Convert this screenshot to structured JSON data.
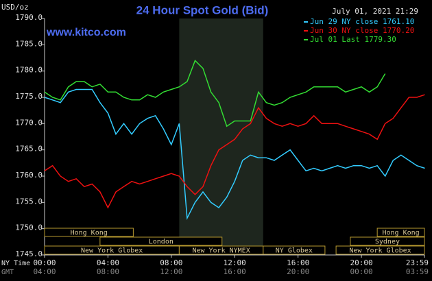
{
  "chart_data": {
    "type": "line",
    "title": "24 Hour Spot Gold (Bid)",
    "subtitle": "www.kitco.com",
    "timestamp": "July 01, 2021 21:29",
    "y_label": "USD/oz",
    "x_label": "NY Time",
    "x2_label": "GMT",
    "x": [
      0,
      0.5,
      1,
      1.5,
      2,
      2.5,
      3,
      3.5,
      4,
      4.5,
      5,
      5.5,
      6,
      6.5,
      7,
      7.5,
      8,
      8.5,
      9,
      9.5,
      10,
      10.5,
      11,
      11.5,
      12,
      12.5,
      13,
      13.5,
      14,
      14.5,
      15,
      15.5,
      16,
      16.5,
      17,
      17.5,
      18,
      18.5,
      19,
      19.5,
      20,
      20.5,
      21,
      21.5,
      22,
      22.5,
      23,
      23.5,
      24
    ],
    "series": [
      {
        "name": "Jun 29 NY close 1761.10",
        "color": "#33ccff",
        "values": [
          1775,
          1774.5,
          1774,
          1776,
          1776.5,
          1776.5,
          1776.5,
          1774,
          1772,
          1768,
          1770,
          1768,
          1770,
          1771,
          1771.5,
          1769,
          1766,
          1770,
          1752,
          1755,
          1757,
          1755,
          1754,
          1756,
          1759,
          1763,
          1764,
          1763.5,
          1763.5,
          1763,
          1764,
          1765,
          1763,
          1761,
          1761.5,
          1761,
          1761.5,
          1762,
          1761.5,
          1762,
          1762,
          1761.5,
          1762,
          1760,
          1763,
          1764,
          1763,
          1762,
          1761.5
        ]
      },
      {
        "name": "Jun 30 NY close 1770.20",
        "color": "#ee1111",
        "values": [
          1761,
          1762,
          1760,
          1759,
          1759.5,
          1758,
          1758.5,
          1757,
          1754,
          1757,
          1758,
          1759,
          1758.5,
          1759,
          1759.5,
          1760,
          1760.5,
          1760,
          1758,
          1756.5,
          1758,
          1762,
          1765,
          1766,
          1767,
          1769,
          1770,
          1773,
          1771,
          1770,
          1769.5,
          1770,
          1769.5,
          1770,
          1771.5,
          1770,
          1770,
          1770,
          1769.5,
          1769,
          1768.5,
          1768,
          1767,
          1770,
          1771,
          1773,
          1775,
          1775,
          1775.5
        ]
      },
      {
        "name": "Jul 01 Last 1779.30",
        "color": "#33dd33",
        "values": [
          1776,
          1775,
          1774.5,
          1777,
          1778,
          1778,
          1777,
          1777.5,
          1776,
          1776,
          1775,
          1774.5,
          1774.5,
          1775.5,
          1775,
          1776,
          1776.5,
          1777,
          1778,
          1782,
          1780.5,
          1776,
          1774,
          1769.5,
          1770.5,
          1770.5,
          1770.5,
          1776,
          1774,
          1773.5,
          1774,
          1775,
          1775.5,
          1776,
          1777,
          1777,
          1777,
          1777,
          1776,
          1776.5,
          1777,
          1776,
          1777,
          1779.5,
          null,
          null,
          null,
          null,
          null
        ]
      }
    ],
    "xlim": [
      0,
      23.98
    ],
    "xticks": [
      {
        "value": 0,
        "label": "00:00"
      },
      {
        "value": 4,
        "label": "04:00"
      },
      {
        "value": 8,
        "label": "08:00"
      },
      {
        "value": 12,
        "label": "12:00"
      },
      {
        "value": 16,
        "label": "16:00"
      },
      {
        "value": 20,
        "label": "20:00"
      },
      {
        "value": 23.98,
        "label": "23:59"
      }
    ],
    "gmt_labels": [
      "04:00",
      "08:00",
      "12:00",
      "16:00",
      "20:00",
      "00:00",
      "03:59"
    ],
    "ylim": [
      1745,
      1790
    ],
    "yticks": [
      {
        "value": 1745,
        "label": "1745.0"
      },
      {
        "value": 1750,
        "label": "1750.0"
      },
      {
        "value": 1755,
        "label": "1755.0"
      },
      {
        "value": 1760,
        "label": "1760.0"
      },
      {
        "value": 1765,
        "label": "1765.0"
      },
      {
        "value": 1770,
        "label": "1770.0"
      },
      {
        "value": 1775,
        "label": "1775.0"
      },
      {
        "value": 1780,
        "label": "1780.0"
      },
      {
        "value": 1785,
        "label": "1785.0"
      },
      {
        "value": 1790,
        "label": "1790.0"
      }
    ],
    "highlight": [
      8.5,
      13.8
    ],
    "sessions": [
      {
        "name": "Hong Kong",
        "row": 0,
        "start": 0,
        "end": 5.6
      },
      {
        "name": "Hong Kong",
        "row": 0,
        "start": 21,
        "end": 24
      },
      {
        "name": "London",
        "row": 1,
        "start": 3.5,
        "end": 11.2
      },
      {
        "name": "Sydney",
        "row": 1,
        "start": 19.3,
        "end": 24
      },
      {
        "name": "New York Globex",
        "row": 2,
        "start": 0,
        "end": 8.5
      },
      {
        "name": "New York NYMEX",
        "row": 2,
        "start": 8.5,
        "end": 13.8
      },
      {
        "name": "NY Globex",
        "row": 2,
        "start": 13.8,
        "end": 17.7
      },
      {
        "name": "New York Globex",
        "row": 2,
        "start": 18.4,
        "end": 24
      }
    ]
  }
}
